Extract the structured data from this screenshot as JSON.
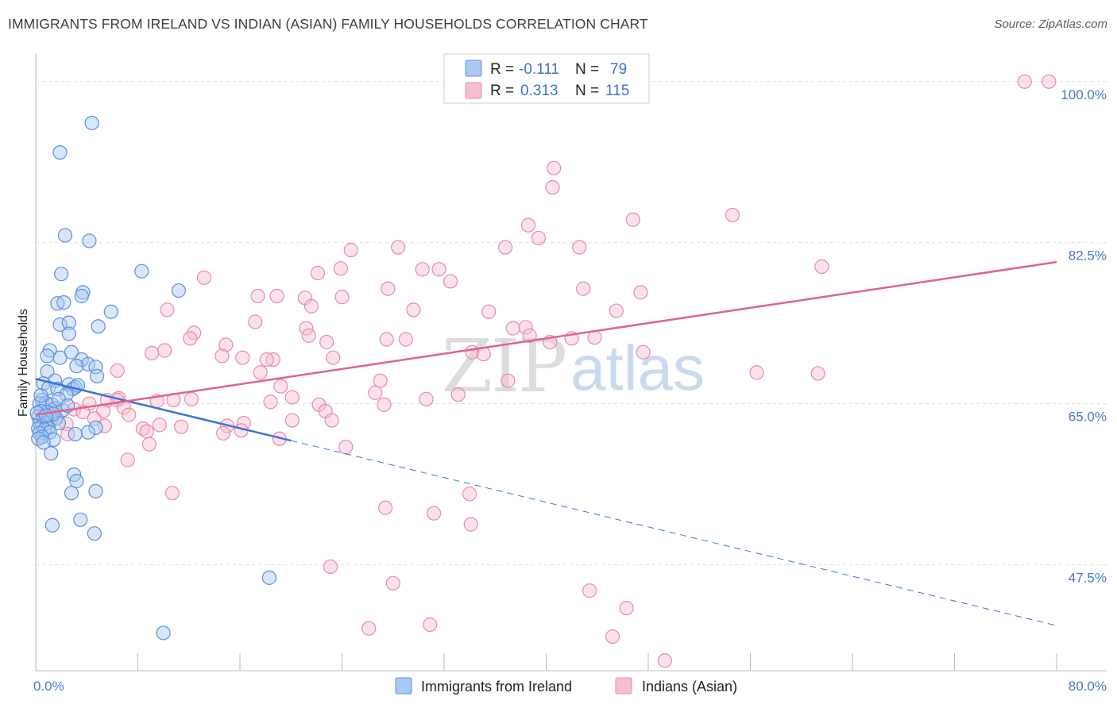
{
  "header": {
    "title": "IMMIGRANTS FROM IRELAND VS INDIAN (ASIAN) FAMILY HOUSEHOLDS CORRELATION CHART",
    "source": "Source: ZipAtlas.com"
  },
  "watermark": {
    "zip": "ZIP",
    "atlas": "atlas"
  },
  "colors": {
    "blue_fill": "#a9c8f2",
    "blue_stroke": "#5d8fdc",
    "blue_line": "#3a74d6",
    "pink_fill": "#f6bfd0",
    "pink_stroke": "#e98aa8",
    "pink_line": "#e0628e",
    "grid": "#dddddd",
    "axis_label": "#4a78c8"
  },
  "chart_data": {
    "type": "scatter",
    "title": "IMMIGRANTS FROM IRELAND VS INDIAN (ASIAN) FAMILY HOUSEHOLDS CORRELATION CHART",
    "xlabel": "",
    "ylabel": "Family Households",
    "xlim": [
      0,
      80
    ],
    "ylim": [
      36,
      103
    ],
    "x_tick_labels": [
      "0.0%",
      "80.0%"
    ],
    "y_ticks": [
      {
        "value": 47.5,
        "label": "47.5%"
      },
      {
        "value": 65.0,
        "label": "65.0%"
      },
      {
        "value": 82.5,
        "label": "82.5%"
      },
      {
        "value": 100.0,
        "label": "100.0%"
      }
    ],
    "legend": {
      "position": "top-center",
      "entries": [
        {
          "r_label": "R =",
          "r": "-0.111",
          "n_label": "N =",
          "n": "79"
        },
        {
          "r_label": "R =",
          "r": "0.313",
          "n_label": "N =",
          "n": "115"
        }
      ]
    },
    "bottom_legend": [
      "Immigrants from Ireland",
      "Indians (Asian)"
    ],
    "series": [
      {
        "name": "Immigrants from Ireland",
        "r": -0.111,
        "n": 79,
        "trend": {
          "x0": 0,
          "y0": 67.7,
          "x_solid_end": 20,
          "x1": 80,
          "y1": 40.9
        },
        "points": [
          [
            4.4,
            95.5
          ],
          [
            1.9,
            92.3
          ],
          [
            2.3,
            83.3
          ],
          [
            4.2,
            82.7
          ],
          [
            8.3,
            79.4
          ],
          [
            11.2,
            77.3
          ],
          [
            2.0,
            79.1
          ],
          [
            3.7,
            77.1
          ],
          [
            3.6,
            76.7
          ],
          [
            1.7,
            75.9
          ],
          [
            2.2,
            76.0
          ],
          [
            5.9,
            75.0
          ],
          [
            1.9,
            73.6
          ],
          [
            2.6,
            73.8
          ],
          [
            4.9,
            73.4
          ],
          [
            2.6,
            72.6
          ],
          [
            1.1,
            70.8
          ],
          [
            1.9,
            70.0
          ],
          [
            2.8,
            70.6
          ],
          [
            0.9,
            70.2
          ],
          [
            3.6,
            69.8
          ],
          [
            4.1,
            69.3
          ],
          [
            3.2,
            69.1
          ],
          [
            4.7,
            69.0
          ],
          [
            0.9,
            68.5
          ],
          [
            4.8,
            68.0
          ],
          [
            1.5,
            67.5
          ],
          [
            0.6,
            67.2
          ],
          [
            2.6,
            67.1
          ],
          [
            3.1,
            66.8
          ],
          [
            1.0,
            66.7
          ],
          [
            2.9,
            66.6
          ],
          [
            1.7,
            66.6
          ],
          [
            3.3,
            67.0
          ],
          [
            2.4,
            66.0
          ],
          [
            0.5,
            65.4
          ],
          [
            0.8,
            65.1
          ],
          [
            0.3,
            65.0
          ],
          [
            1.3,
            64.9
          ],
          [
            1.5,
            64.5
          ],
          [
            2.1,
            64.3
          ],
          [
            0.9,
            64.1
          ],
          [
            0.4,
            64.2
          ],
          [
            0.2,
            63.6
          ],
          [
            0.6,
            63.5
          ],
          [
            1.2,
            63.3
          ],
          [
            1.6,
            63.4
          ],
          [
            0.3,
            62.9
          ],
          [
            0.9,
            62.9
          ],
          [
            1.8,
            62.9
          ],
          [
            0.5,
            62.6
          ],
          [
            1.0,
            62.4
          ],
          [
            0.2,
            62.3
          ],
          [
            0.7,
            62.2
          ],
          [
            0.3,
            61.8
          ],
          [
            1.1,
            61.9
          ],
          [
            4.7,
            62.4
          ],
          [
            4.1,
            61.9
          ],
          [
            3.1,
            61.7
          ],
          [
            0.5,
            61.4
          ],
          [
            0.2,
            61.2
          ],
          [
            1.4,
            61.1
          ],
          [
            0.6,
            60.8
          ],
          [
            1.2,
            59.6
          ],
          [
            3.0,
            57.3
          ],
          [
            3.2,
            56.6
          ],
          [
            4.7,
            55.5
          ],
          [
            2.8,
            55.3
          ],
          [
            3.5,
            52.4
          ],
          [
            1.3,
            51.8
          ],
          [
            4.6,
            50.9
          ],
          [
            18.3,
            46.1
          ],
          [
            10.0,
            40.1
          ],
          [
            0.4,
            65.9
          ],
          [
            1.8,
            65.5
          ],
          [
            2.5,
            64.8
          ],
          [
            0.1,
            64.0
          ],
          [
            1.4,
            63.9
          ],
          [
            0.8,
            63.7
          ]
        ]
      },
      {
        "name": "Indians (Asian)",
        "r": 0.313,
        "n": 115,
        "trend": {
          "x0": 0,
          "y0": 63.8,
          "x1": 80,
          "y1": 80.4
        },
        "points": [
          [
            77.5,
            100.0
          ],
          [
            79.4,
            100.0
          ],
          [
            40.6,
            90.6
          ],
          [
            40.5,
            88.5
          ],
          [
            54.6,
            85.5
          ],
          [
            46.8,
            85.0
          ],
          [
            38.6,
            84.4
          ],
          [
            39.4,
            83.0
          ],
          [
            36.8,
            82.0
          ],
          [
            42.6,
            82.0
          ],
          [
            28.4,
            82.0
          ],
          [
            24.7,
            81.7
          ],
          [
            61.6,
            79.9
          ],
          [
            23.9,
            79.7
          ],
          [
            30.3,
            79.6
          ],
          [
            31.6,
            79.6
          ],
          [
            22.1,
            79.2
          ],
          [
            32.5,
            78.3
          ],
          [
            13.2,
            78.7
          ],
          [
            21.1,
            76.5
          ],
          [
            27.6,
            77.5
          ],
          [
            42.9,
            77.5
          ],
          [
            47.4,
            77.1
          ],
          [
            18.9,
            76.7
          ],
          [
            24.0,
            76.6
          ],
          [
            17.4,
            76.7
          ],
          [
            21.6,
            75.6
          ],
          [
            29.6,
            75.2
          ],
          [
            10.3,
            75.2
          ],
          [
            45.5,
            75.1
          ],
          [
            35.5,
            75.0
          ],
          [
            17.2,
            73.9
          ],
          [
            37.4,
            73.2
          ],
          [
            38.4,
            73.3
          ],
          [
            21.2,
            73.2
          ],
          [
            12.4,
            72.7
          ],
          [
            21.4,
            72.4
          ],
          [
            38.7,
            72.4
          ],
          [
            12.1,
            72.1
          ],
          [
            27.5,
            72.0
          ],
          [
            29.0,
            72.0
          ],
          [
            42.0,
            72.1
          ],
          [
            43.8,
            72.2
          ],
          [
            22.8,
            71.7
          ],
          [
            40.3,
            71.7
          ],
          [
            14.9,
            71.4
          ],
          [
            10.1,
            70.8
          ],
          [
            9.1,
            70.5
          ],
          [
            34.2,
            70.6
          ],
          [
            35.1,
            70.4
          ],
          [
            14.6,
            70.2
          ],
          [
            23.3,
            70.0
          ],
          [
            18.6,
            69.8
          ],
          [
            18.1,
            69.8
          ],
          [
            47.6,
            70.6
          ],
          [
            6.4,
            68.6
          ],
          [
            17.6,
            68.4
          ],
          [
            56.5,
            68.4
          ],
          [
            61.3,
            68.3
          ],
          [
            37.0,
            67.5
          ],
          [
            27.0,
            67.5
          ],
          [
            6.5,
            65.6
          ],
          [
            10.8,
            65.4
          ],
          [
            12.2,
            65.5
          ],
          [
            5.6,
            65.4
          ],
          [
            9.5,
            65.3
          ],
          [
            6.4,
            65.4
          ],
          [
            18.4,
            65.2
          ],
          [
            4.2,
            65.0
          ],
          [
            27.3,
            64.9
          ],
          [
            22.2,
            64.9
          ],
          [
            6.9,
            64.6
          ],
          [
            3.0,
            64.4
          ],
          [
            5.3,
            64.2
          ],
          [
            1.4,
            64.0
          ],
          [
            3.7,
            64.1
          ],
          [
            7.3,
            63.8
          ],
          [
            22.7,
            64.2
          ],
          [
            4.6,
            63.4
          ],
          [
            20.1,
            63.2
          ],
          [
            23.2,
            63.2
          ],
          [
            16.3,
            62.9
          ],
          [
            9.7,
            62.7
          ],
          [
            2.4,
            62.8
          ],
          [
            5.4,
            62.6
          ],
          [
            15.0,
            62.6
          ],
          [
            11.4,
            62.5
          ],
          [
            8.4,
            62.3
          ],
          [
            16.1,
            62.1
          ],
          [
            8.7,
            62.0
          ],
          [
            2.5,
            61.7
          ],
          [
            14.7,
            61.8
          ],
          [
            19.1,
            61.2
          ],
          [
            8.9,
            60.6
          ],
          [
            24.3,
            60.3
          ],
          [
            7.2,
            58.9
          ],
          [
            10.7,
            55.3
          ],
          [
            34.0,
            55.2
          ],
          [
            27.4,
            53.7
          ],
          [
            31.2,
            53.1
          ],
          [
            34.1,
            51.9
          ],
          [
            23.1,
            47.3
          ],
          [
            28.0,
            45.5
          ],
          [
            43.4,
            44.7
          ],
          [
            46.3,
            42.8
          ],
          [
            26.1,
            40.6
          ],
          [
            30.9,
            41.0
          ],
          [
            45.2,
            39.7
          ],
          [
            49.3,
            37.1
          ],
          [
            16.2,
            70.0
          ],
          [
            19.2,
            66.9
          ],
          [
            26.6,
            66.2
          ],
          [
            33.1,
            66.0
          ],
          [
            30.6,
            65.5
          ],
          [
            20.1,
            65.7
          ]
        ]
      }
    ]
  }
}
